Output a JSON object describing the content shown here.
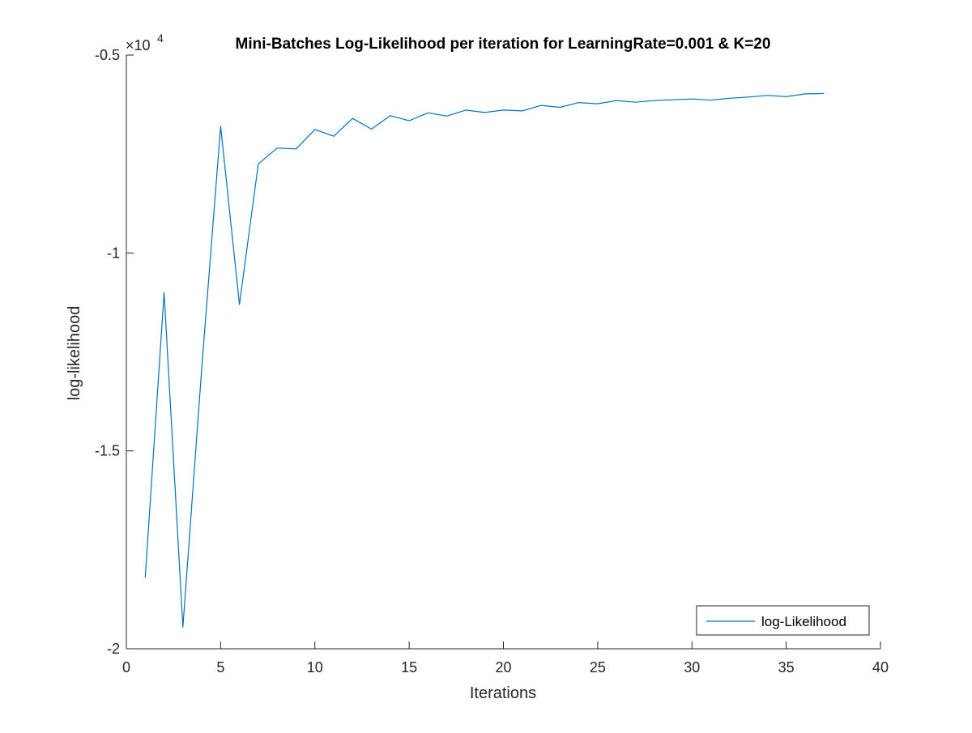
{
  "chart_data": {
    "type": "line",
    "title": "Mini-Batches Log-Likelihood per iteration for LearningRate=0.001 & K=20",
    "xlabel": "Iterations",
    "ylabel": "log-likelihood",
    "xlim": [
      0,
      40
    ],
    "ylim": [
      -20000,
      -5000
    ],
    "xticks": [
      0,
      5,
      10,
      15,
      20,
      25,
      30,
      35,
      40
    ],
    "xtick_labels": [
      "0",
      "5",
      "10",
      "15",
      "20",
      "25",
      "30",
      "35",
      "40"
    ],
    "yticks": [
      -20000,
      -15000,
      -10000,
      -5000
    ],
    "ytick_labels": [
      "-2",
      "-1.5",
      "-1",
      "-0.5"
    ],
    "y_exponent_label": "×10",
    "y_exponent_power": "4",
    "grid": false,
    "legend": {
      "position": "bottom-right",
      "entries": [
        "log-Likelihood"
      ]
    },
    "series": [
      {
        "name": "log-Likelihood",
        "color": "#0072BD",
        "x": [
          1,
          2,
          3,
          4,
          5,
          6,
          7,
          8,
          9,
          10,
          11,
          12,
          13,
          14,
          15,
          16,
          17,
          18,
          19,
          20,
          21,
          22,
          23,
          24,
          25,
          26,
          27,
          28,
          29,
          30,
          31,
          32,
          33,
          34,
          35,
          36,
          37
        ],
        "y": [
          -18200,
          -11000,
          -19450,
          -12900,
          -6800,
          -11300,
          -7750,
          -7350,
          -7370,
          -6880,
          -7050,
          -6600,
          -6870,
          -6530,
          -6660,
          -6460,
          -6540,
          -6390,
          -6450,
          -6390,
          -6410,
          -6270,
          -6320,
          -6200,
          -6230,
          -6150,
          -6190,
          -6150,
          -6130,
          -6110,
          -6140,
          -6090,
          -6060,
          -6020,
          -6050,
          -5980,
          -5970
        ]
      }
    ]
  }
}
